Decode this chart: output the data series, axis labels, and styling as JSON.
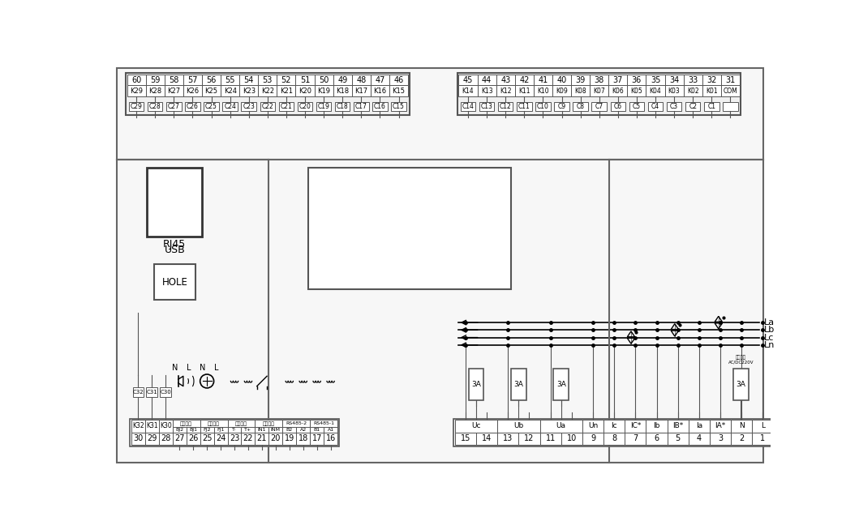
{
  "top_left_row1": [
    "60",
    "59",
    "58",
    "57",
    "56",
    "55",
    "54",
    "53",
    "52",
    "51",
    "50",
    "49",
    "48",
    "47",
    "46"
  ],
  "top_left_row2": [
    "K29",
    "K28",
    "K27",
    "K26",
    "K25",
    "K24",
    "K23",
    "K22",
    "K21",
    "K20",
    "K19",
    "K18",
    "K17",
    "K16",
    "K15"
  ],
  "top_left_row3": [
    "C29",
    "C28",
    "C27",
    "C26",
    "C25",
    "C24",
    "C23",
    "C22",
    "C21",
    "C20",
    "C19",
    "C18",
    "C17",
    "C16",
    "C15"
  ],
  "top_right_row1": [
    "45",
    "44",
    "43",
    "42",
    "41",
    "40",
    "39",
    "38",
    "37",
    "36",
    "35",
    "34",
    "33",
    "32",
    "31"
  ],
  "top_right_row2": [
    "K14",
    "K13",
    "K12",
    "K11",
    "K10",
    "K09",
    "K08",
    "K07",
    "K06",
    "K05",
    "K04",
    "K03",
    "K02",
    "K01",
    "COM"
  ],
  "top_right_row3": [
    "C14",
    "C13",
    "C12",
    "C11",
    "C10",
    "C9",
    "C8",
    "C7",
    "C6",
    "C5",
    "C4",
    "C3",
    "C2",
    "C1"
  ],
  "bottom_left_nums": [
    "30",
    "29",
    "28",
    "27",
    "26",
    "25",
    "24",
    "23",
    "22",
    "21",
    "20",
    "19",
    "18",
    "17",
    "16"
  ],
  "bottom_left_k": [
    "K32",
    "K31",
    "K30"
  ],
  "bottom_left_grp": [
    "报警输出",
    "风机控制",
    "温度检测",
    "开入信号",
    "RS485-2",
    "RS485-1"
  ],
  "bottom_left_sub": [
    "BJ2",
    "BJ1",
    "FJ2",
    "FJ1",
    "T-",
    "T+",
    "IN1",
    "INM",
    "B2",
    "A2",
    "B1",
    "A1"
  ],
  "bottom_right_labels": [
    "Uc",
    "Ub",
    "Ua",
    "Un",
    "Ic",
    "IC*",
    "Ib",
    "IB*",
    "Ia",
    "IA*",
    "N",
    "L"
  ],
  "bottom_right_nums": [
    "15",
    "14",
    "13",
    "12",
    "11",
    "10",
    "9",
    "8",
    "7",
    "6",
    "5",
    "4",
    "3",
    "2",
    "1"
  ],
  "phase_labels": [
    "La",
    "Lb",
    "Lc",
    "Ln"
  ],
  "power_label": "工作电源\nAC/DC220V",
  "c_small_boxes": [
    "C32",
    "C31",
    "C30"
  ]
}
